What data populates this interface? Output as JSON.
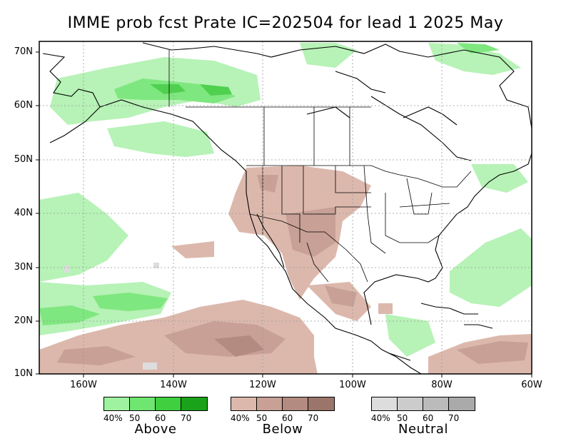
{
  "title": "IMME prob fcst Prate IC=202504 for lead 1 2025 May",
  "lat_labels": [
    "70N",
    "60N",
    "50N",
    "40N",
    "30N",
    "20N",
    "10N"
  ],
  "lon_labels": [
    "160W",
    "140W",
    "120W",
    "100W",
    "80W",
    "60W"
  ],
  "legend": {
    "above": {
      "name": "Above",
      "ticks": [
        "40%",
        "50",
        "60",
        "70"
      ],
      "colors": [
        "#9ff29f",
        "#6fe66f",
        "#3fcf3f",
        "#1aa31a"
      ]
    },
    "below": {
      "name": "Below",
      "ticks": [
        "40%",
        "50",
        "60",
        "70"
      ],
      "colors": [
        "#dcb8ac",
        "#c8a095",
        "#b38b80",
        "#9c756a"
      ]
    },
    "neutral": {
      "name": "Neutral",
      "ticks": [
        "40%",
        "50",
        "60",
        "70"
      ],
      "colors": [
        "#dddddd",
        "#cccccc",
        "#bbbbbb",
        "#aaaaaa"
      ]
    }
  }
}
